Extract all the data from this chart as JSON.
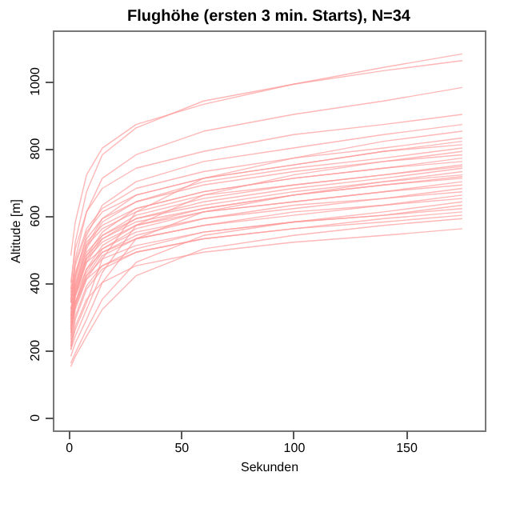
{
  "chart_data": {
    "type": "line",
    "title": "Flughöhe (ersten 3 min. Starts), N=34",
    "xlabel": "Sekunden",
    "ylabel": "Altitude [m]",
    "x": [
      1,
      3,
      8,
      15,
      30,
      60,
      100,
      140,
      175
    ],
    "xlim": [
      -7,
      185
    ],
    "xticks": [
      0,
      50,
      100,
      150
    ],
    "ylim": [
      -40,
      1150
    ],
    "yticks": [
      0,
      200,
      400,
      600,
      800,
      1000
    ],
    "grid": false,
    "legend": false,
    "marker": "none",
    "line_style": "solid",
    "series": [
      {
        "color": "#ff9999",
        "values": [
          380,
          520,
          670,
          780,
          860,
          940,
          990,
          1040,
          1080
        ]
      },
      {
        "color": "#ff9999",
        "values": [
          480,
          580,
          720,
          800,
          870,
          930,
          990,
          1030,
          1060
        ]
      },
      {
        "color": "#ff9999",
        "values": [
          340,
          470,
          610,
          710,
          780,
          850,
          900,
          940,
          980
        ]
      },
      {
        "color": "#ff9999",
        "values": [
          400,
          500,
          610,
          680,
          740,
          790,
          840,
          870,
          900
        ]
      },
      {
        "color": "#ff9999",
        "values": [
          300,
          420,
          540,
          630,
          700,
          760,
          800,
          840,
          870
        ]
      },
      {
        "color": "#ff9999",
        "values": [
          210,
          260,
          340,
          470,
          610,
          710,
          770,
          820,
          850
        ]
      },
      {
        "color": "#ff9999",
        "values": [
          370,
          460,
          560,
          620,
          680,
          730,
          770,
          800,
          830
        ]
      },
      {
        "color": "#ff9999",
        "values": [
          290,
          390,
          510,
          590,
          660,
          710,
          750,
          790,
          820
        ]
      },
      {
        "color": "#ff9999",
        "values": [
          360,
          450,
          550,
          610,
          660,
          710,
          750,
          790,
          810
        ]
      },
      {
        "color": "#ff9999",
        "values": [
          280,
          380,
          500,
          580,
          640,
          700,
          740,
          770,
          800
        ]
      },
      {
        "color": "#ff9999",
        "values": [
          200,
          240,
          320,
          430,
          570,
          660,
          720,
          760,
          790
        ]
      },
      {
        "color": "#ff9999",
        "values": [
          350,
          430,
          530,
          590,
          640,
          690,
          730,
          760,
          780
        ]
      },
      {
        "color": "#ff9999",
        "values": [
          270,
          370,
          480,
          550,
          620,
          670,
          710,
          740,
          770
        ]
      },
      {
        "color": "#ff9999",
        "values": [
          340,
          420,
          520,
          570,
          620,
          670,
          710,
          740,
          760
        ]
      },
      {
        "color": "#ff9999",
        "values": [
          260,
          360,
          470,
          540,
          600,
          650,
          690,
          720,
          750
        ]
      },
      {
        "color": "#ff9999",
        "values": [
          340,
          410,
          510,
          560,
          610,
          660,
          690,
          720,
          745
        ]
      },
      {
        "color": "#ff9999",
        "values": [
          260,
          360,
          460,
          530,
          590,
          640,
          680,
          710,
          740
        ]
      },
      {
        "color": "#ff9999",
        "values": [
          180,
          220,
          290,
          400,
          530,
          610,
          660,
          700,
          730
        ]
      },
      {
        "color": "#ff9999",
        "values": [
          320,
          400,
          490,
          540,
          590,
          630,
          670,
          700,
          720
        ]
      },
      {
        "color": "#ff9999",
        "values": [
          250,
          340,
          440,
          510,
          570,
          620,
          660,
          690,
          715
        ]
      },
      {
        "color": "#ff9999",
        "values": [
          320,
          390,
          480,
          530,
          580,
          620,
          660,
          690,
          710
        ]
      },
      {
        "color": "#ff9999",
        "values": [
          250,
          340,
          430,
          500,
          560,
          610,
          640,
          670,
          700
        ]
      },
      {
        "color": "#ff9999",
        "values": [
          310,
          380,
          470,
          520,
          570,
          610,
          640,
          670,
          690
        ]
      },
      {
        "color": "#ff9999",
        "values": [
          240,
          330,
          420,
          490,
          540,
          590,
          630,
          650,
          680
        ]
      },
      {
        "color": "#ff9999",
        "values": [
          300,
          370,
          460,
          500,
          550,
          590,
          620,
          650,
          670
        ]
      },
      {
        "color": "#ff9999",
        "values": [
          230,
          320,
          410,
          480,
          530,
          570,
          610,
          630,
          660
        ]
      },
      {
        "color": "#ff9999",
        "values": [
          290,
          360,
          440,
          490,
          530,
          570,
          600,
          630,
          650
        ]
      },
      {
        "color": "#ff9999",
        "values": [
          160,
          190,
          260,
          350,
          460,
          540,
          580,
          610,
          640
        ]
      },
      {
        "color": "#ff9999",
        "values": [
          220,
          300,
          390,
          450,
          500,
          550,
          580,
          600,
          630
        ]
      },
      {
        "color": "#ff9999",
        "values": [
          280,
          340,
          420,
          470,
          510,
          550,
          580,
          600,
          620
        ]
      },
      {
        "color": "#ff9999",
        "values": [
          210,
          290,
          380,
          440,
          490,
          530,
          560,
          590,
          610
        ]
      },
      {
        "color": "#ff9999",
        "values": [
          270,
          330,
          410,
          450,
          490,
          530,
          560,
          580,
          600
        ]
      },
      {
        "color": "#ff9999",
        "values": [
          150,
          180,
          240,
          320,
          420,
          500,
          540,
          570,
          590
        ]
      },
      {
        "color": "#ff9999",
        "values": [
          200,
          270,
          350,
          400,
          450,
          490,
          520,
          540,
          560
        ]
      }
    ]
  }
}
